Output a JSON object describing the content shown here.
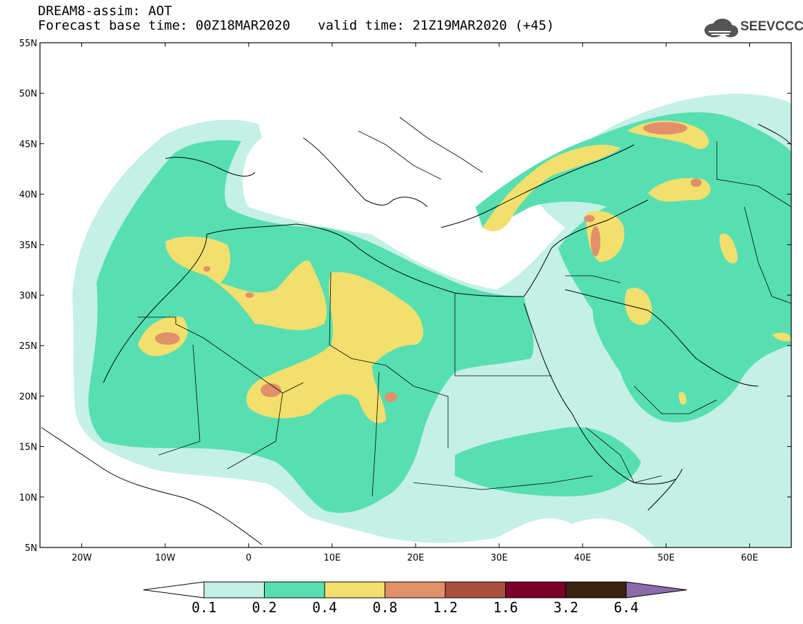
{
  "header": {
    "title": "DREAM8-assim: AOT",
    "base_time_label": "Forecast base time: 00Z18MAR2020",
    "valid_time_label": "valid time: 21Z19MAR2020 (+45)"
  },
  "logo": {
    "text": "SEEVCCC",
    "icon": "cloud-logo-icon"
  },
  "map": {
    "type": "geographic-field-map",
    "variable": "AOT",
    "lon_range": [
      -25,
      65
    ],
    "lat_range": [
      5,
      55
    ],
    "lat_ticks": [
      "55N",
      "50N",
      "45N",
      "40N",
      "35N",
      "30N",
      "25N",
      "20N",
      "15N",
      "10N",
      "5N"
    ],
    "lon_ticks": [
      "20W",
      "10W",
      "0",
      "10E",
      "20E",
      "30E",
      "40E",
      "50E",
      "60E"
    ]
  },
  "colorbar": {
    "labels": [
      "0.1",
      "0.2",
      "0.4",
      "0.8",
      "1.2",
      "1.6",
      "3.2",
      "6.4"
    ],
    "colors": [
      "#c4f0e6",
      "#57dfb1",
      "#f2df6e",
      "#e2906a",
      "#a84f3c",
      "#7a0029",
      "#3a2211",
      "#8a6aa8"
    ]
  }
}
